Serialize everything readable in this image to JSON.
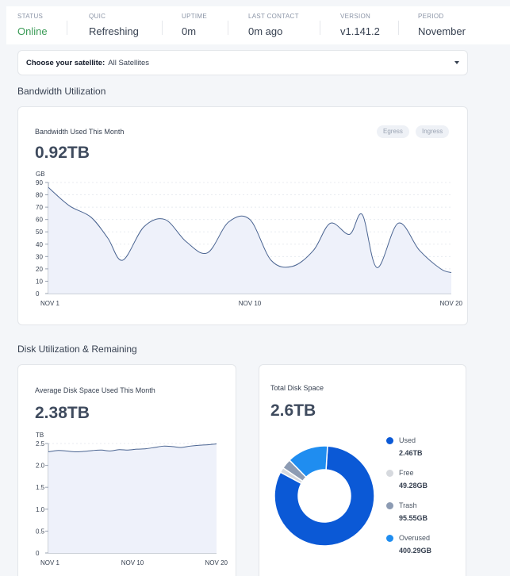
{
  "status": {
    "items": [
      {
        "label": "STATUS",
        "value": "Online"
      },
      {
        "label": "QUIC",
        "value": "Refreshing"
      },
      {
        "label": "UPTIME",
        "value": "0m"
      },
      {
        "label": "LAST CONTACT",
        "value": "0m ago"
      },
      {
        "label": "VERSION",
        "value": "v1.141.2"
      },
      {
        "label": "PERIOD",
        "value": "November"
      }
    ],
    "online_color": "#3b9b57"
  },
  "satellite_select": {
    "label": "Choose your satellite:",
    "value": "All Satellites"
  },
  "sections": {
    "bandwidth": "Bandwidth Utilization",
    "disk": "Disk Utilization & Remaining"
  },
  "bandwidth_card": {
    "title": "Bandwidth Used This Month",
    "value": "0.92TB",
    "toggles": [
      "Egress",
      "Ingress"
    ]
  },
  "disk_avg_card": {
    "title": "Average Disk Space Used This Month",
    "value": "2.38TB"
  },
  "total_disk_card": {
    "title": "Total Disk Space",
    "value": "2.6TB",
    "legend": [
      {
        "name": "Used",
        "value": "2.46TB",
        "color": "#0b59d6"
      },
      {
        "name": "Free",
        "value": "49.28GB",
        "color": "#d6d9de"
      },
      {
        "name": "Trash",
        "value": "95.55GB",
        "color": "#8c9bb3"
      },
      {
        "name": "Overused",
        "value": "400.29GB",
        "color": "#1f8df0"
      }
    ]
  },
  "chart_data": [
    {
      "type": "area",
      "title": "Bandwidth Used This Month",
      "ylabel": "GB",
      "ylim": [
        0,
        90
      ],
      "yticks": [
        0,
        10,
        20,
        30,
        40,
        50,
        60,
        70,
        80,
        90
      ],
      "xticks": [
        "NOV 1",
        "NOV 10",
        "NOV 20"
      ],
      "x": [
        1,
        2,
        3,
        3.8,
        4.5,
        5.5,
        6.5,
        7.5,
        8.5,
        9.5,
        10.5,
        11.5,
        12.5,
        13.5,
        14.3,
        15.2,
        15.8,
        16.5,
        17.5,
        18.5,
        19.5,
        20
      ],
      "values": [
        86,
        71,
        62,
        45,
        27,
        54,
        60,
        42,
        33,
        58,
        60,
        27,
        22,
        35,
        57,
        48,
        64,
        21,
        57,
        35,
        20,
        17
      ],
      "line_color": "#4a6491",
      "fill_color": "#eef1fa"
    },
    {
      "type": "area",
      "title": "Average Disk Space Used This Month",
      "ylabel": "TB",
      "ylim": [
        0,
        2.5
      ],
      "yticks": [
        0,
        0.5,
        1.0,
        1.5,
        2.0,
        2.5
      ],
      "ytick_labels": [
        "0",
        "0.5",
        "1.0",
        "1.5",
        "2.0",
        "2.5"
      ],
      "xticks": [
        "NOV 1",
        "NOV 10",
        "NOV 20"
      ],
      "x": [
        1,
        2,
        3,
        4,
        5,
        6,
        7,
        8,
        9,
        10,
        11,
        12,
        13,
        14,
        15,
        16,
        17,
        18,
        19,
        20
      ],
      "values": [
        2.31,
        2.34,
        2.33,
        2.31,
        2.32,
        2.34,
        2.35,
        2.33,
        2.36,
        2.35,
        2.37,
        2.38,
        2.41,
        2.44,
        2.43,
        2.41,
        2.44,
        2.46,
        2.47,
        2.49
      ],
      "line_color": "#4a6491",
      "fill_color": "#eef1fa"
    },
    {
      "type": "pie",
      "title": "Total Disk Space",
      "labels": [
        "Used",
        "Free",
        "Trash",
        "Overused"
      ],
      "values": [
        2.46,
        0.04928,
        0.09555,
        0.40029
      ],
      "units": [
        "TB",
        "TB",
        "TB",
        "TB"
      ],
      "colors": [
        "#0b59d6",
        "#d6d9de",
        "#8c9bb3",
        "#1f8df0"
      ],
      "donut": true
    }
  ]
}
